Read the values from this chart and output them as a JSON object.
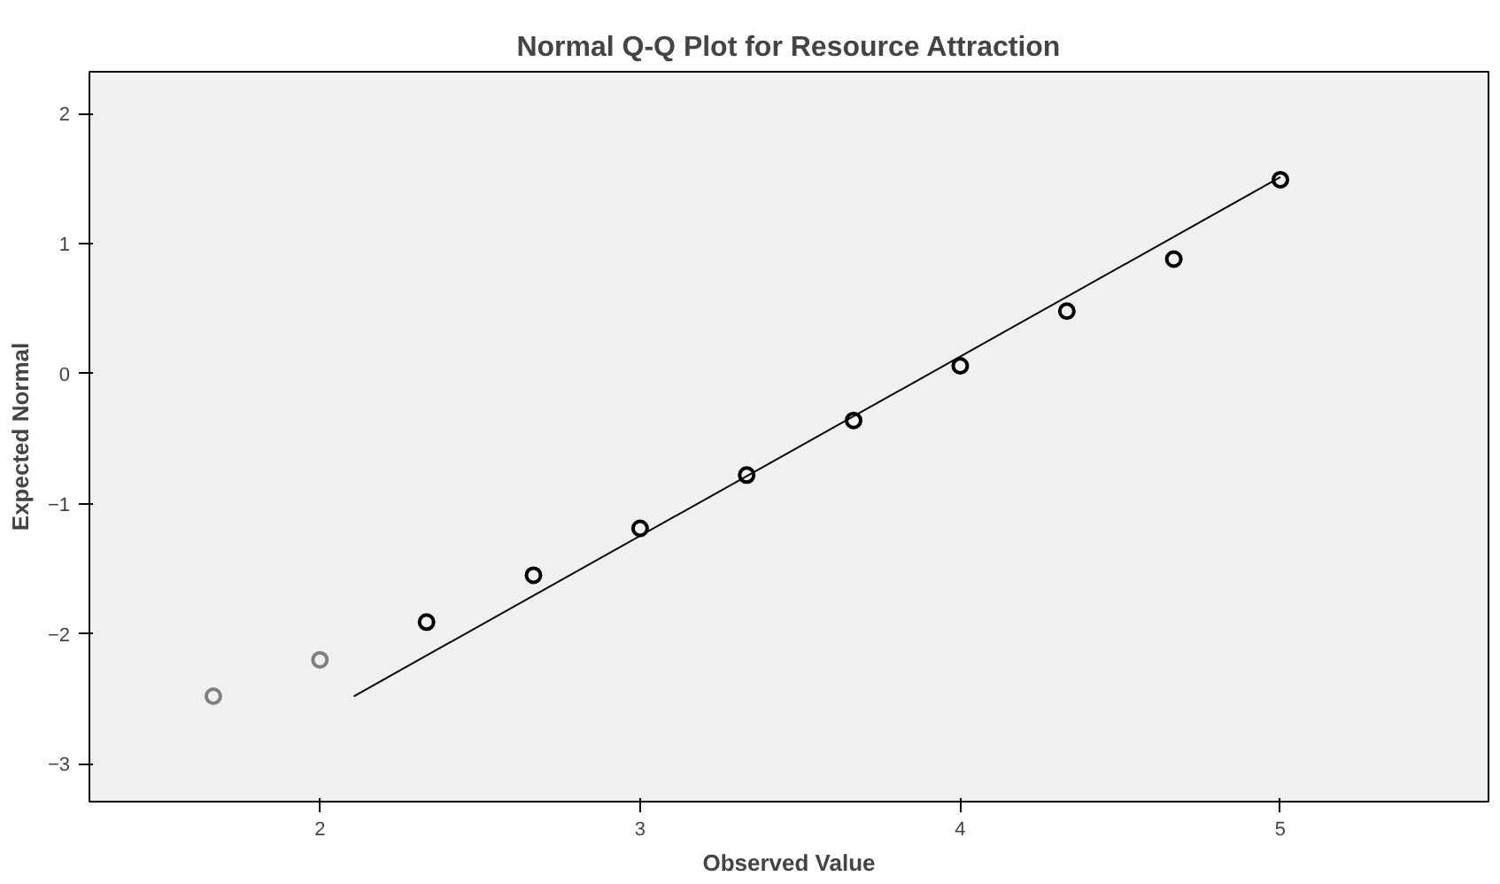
{
  "chart_data": {
    "type": "scatter",
    "title": "Normal Q-Q Plot for Resource Attraction",
    "xlabel": "Observed Value",
    "ylabel": "Expected Normal",
    "xlim": [
      1.28,
      5.65
    ],
    "ylim": [
      -3.29,
      2.32
    ],
    "xticks": [
      2,
      3,
      4,
      5
    ],
    "yticks": [
      -3,
      -2,
      -1,
      0,
      1,
      2
    ],
    "grid": false,
    "series": [
      {
        "marker": "circle",
        "color": "#000000",
        "colors": [
          "#808080",
          "#808080",
          "#000000",
          "#000000",
          "#000000",
          "#000000",
          "#000000",
          "#000000",
          "#000000",
          "#000000",
          "#000000"
        ],
        "x": [
          1.667,
          2,
          2.333,
          2.667,
          3,
          3.333,
          3.667,
          4,
          4.333,
          4.667,
          5
        ],
        "values": [
          -2.48,
          -2.2,
          -1.91,
          -1.55,
          -1.19,
          -0.78,
          -0.36,
          0.06,
          0.48,
          0.88,
          1.49
        ]
      },
      {
        "type": "line",
        "marker": "none",
        "color": "#000000",
        "x": [
          2.106,
          5
        ],
        "values": [
          -2.48,
          1.51
        ]
      }
    ]
  }
}
